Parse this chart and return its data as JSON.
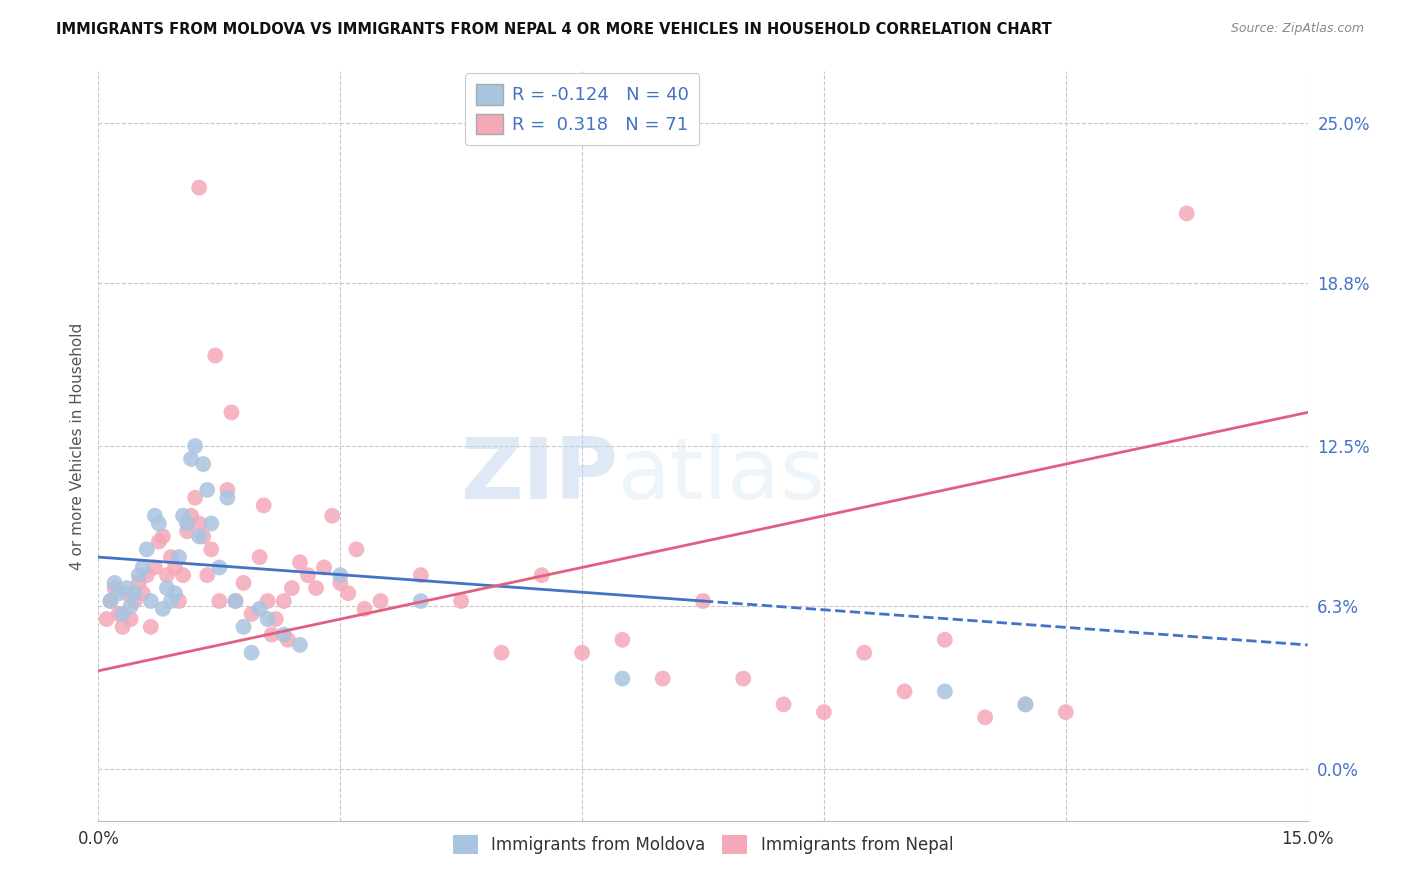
{
  "title": "IMMIGRANTS FROM MOLDOVA VS IMMIGRANTS FROM NEPAL 4 OR MORE VEHICLES IN HOUSEHOLD CORRELATION CHART",
  "source": "Source: ZipAtlas.com",
  "ylabel": "4 or more Vehicles in Household",
  "xlim": [
    0.0,
    15.0
  ],
  "ylim": [
    -2.0,
    27.0
  ],
  "yticks": [
    0.0,
    6.3,
    12.5,
    18.8,
    25.0
  ],
  "xtick_positions": [
    0.0,
    3.0,
    6.0,
    9.0,
    12.0,
    15.0
  ],
  "moldova_color": "#a8c4e0",
  "nepal_color": "#f4a8b8",
  "moldova_line_color": "#4472c4",
  "nepal_line_color": "#e06080",
  "moldova_R": -0.124,
  "moldova_N": 40,
  "nepal_R": 0.318,
  "nepal_N": 71,
  "background_color": "#ffffff",
  "grid_color": "#c8c8c8",
  "watermark_text": "ZIPatlas",
  "legend_label_moldova": "Immigrants from Moldova",
  "legend_label_nepal": "Immigrants from Nepal",
  "moldova_line_x0": 0.0,
  "moldova_line_y0": 8.2,
  "moldova_line_x1": 15.0,
  "moldova_line_y1": 4.8,
  "moldova_solid_end_x": 7.5,
  "nepal_line_x0": 0.0,
  "nepal_line_y0": 3.8,
  "nepal_line_x1": 15.0,
  "nepal_line_y1": 13.8,
  "moldova_scatter_x": [
    0.15,
    0.2,
    0.25,
    0.3,
    0.35,
    0.4,
    0.45,
    0.5,
    0.55,
    0.6,
    0.65,
    0.7,
    0.75,
    0.8,
    0.85,
    0.9,
    0.95,
    1.0,
    1.05,
    1.1,
    1.15,
    1.2,
    1.25,
    1.3,
    1.35,
    1.4,
    1.5,
    1.6,
    1.7,
    1.8,
    1.9,
    2.0,
    2.1,
    2.3,
    2.5,
    3.0,
    4.0,
    6.5,
    10.5,
    11.5
  ],
  "moldova_scatter_y": [
    6.5,
    7.2,
    6.8,
    6.0,
    7.0,
    6.3,
    6.8,
    7.5,
    7.8,
    8.5,
    6.5,
    9.8,
    9.5,
    6.2,
    7.0,
    6.5,
    6.8,
    8.2,
    9.8,
    9.5,
    12.0,
    12.5,
    9.0,
    11.8,
    10.8,
    9.5,
    7.8,
    10.5,
    6.5,
    5.5,
    4.5,
    6.2,
    5.8,
    5.2,
    4.8,
    7.5,
    6.5,
    3.5,
    3.0,
    2.5
  ],
  "nepal_scatter_x": [
    0.1,
    0.15,
    0.2,
    0.25,
    0.3,
    0.35,
    0.4,
    0.45,
    0.5,
    0.55,
    0.6,
    0.65,
    0.7,
    0.75,
    0.8,
    0.85,
    0.9,
    0.95,
    1.0,
    1.05,
    1.1,
    1.15,
    1.2,
    1.25,
    1.3,
    1.35,
    1.4,
    1.5,
    1.6,
    1.7,
    1.8,
    1.9,
    2.0,
    2.1,
    2.2,
    2.3,
    2.4,
    2.5,
    2.6,
    2.7,
    2.8,
    2.9,
    3.0,
    3.1,
    3.2,
    3.5,
    4.0,
    4.5,
    5.0,
    5.5,
    6.0,
    6.5,
    7.0,
    7.5,
    8.0,
    8.5,
    9.0,
    9.5,
    10.0,
    10.5,
    11.0,
    11.5,
    12.0,
    13.5,
    1.25,
    1.45,
    1.65,
    2.05,
    2.15,
    2.35,
    3.3
  ],
  "nepal_scatter_y": [
    5.8,
    6.5,
    7.0,
    6.0,
    5.5,
    6.8,
    5.8,
    6.5,
    7.2,
    6.8,
    7.5,
    5.5,
    7.8,
    8.8,
    9.0,
    7.5,
    8.2,
    7.8,
    6.5,
    7.5,
    9.2,
    9.8,
    10.5,
    9.5,
    9.0,
    7.5,
    8.5,
    6.5,
    10.8,
    6.5,
    7.2,
    6.0,
    8.2,
    6.5,
    5.8,
    6.5,
    7.0,
    8.0,
    7.5,
    7.0,
    7.8,
    9.8,
    7.2,
    6.8,
    8.5,
    6.5,
    7.5,
    6.5,
    4.5,
    7.5,
    4.5,
    5.0,
    3.5,
    6.5,
    3.5,
    2.5,
    2.2,
    4.5,
    3.0,
    5.0,
    2.0,
    2.5,
    2.2,
    21.5,
    22.5,
    16.0,
    13.8,
    10.2,
    5.2,
    5.0,
    6.2
  ]
}
